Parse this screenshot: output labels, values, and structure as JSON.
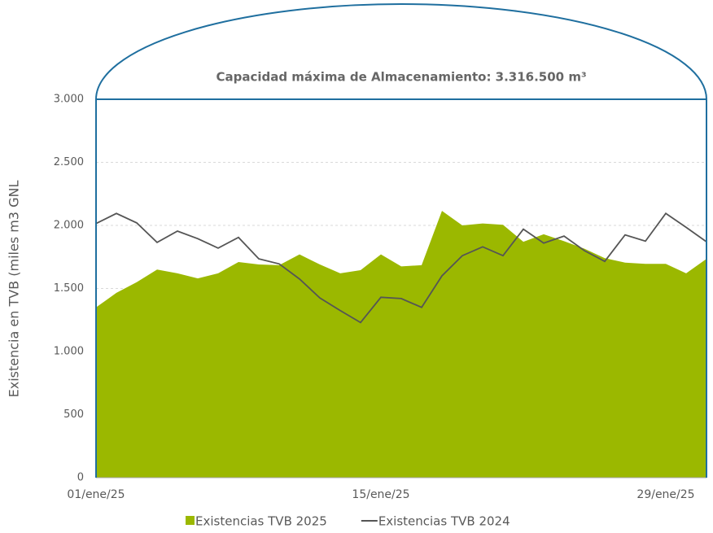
{
  "chart_data": {
    "type": "area_line",
    "annotation": "Capacidad máxima de Almacenamiento: 3.316.500 m³",
    "y_label": "Existencia en TVB (miles m3 GNL",
    "categories": [
      "01/ene/25",
      null,
      null,
      null,
      null,
      null,
      null,
      null,
      null,
      null,
      null,
      null,
      null,
      null,
      "15/ene/25",
      null,
      null,
      null,
      null,
      null,
      null,
      null,
      null,
      null,
      null,
      null,
      null,
      null,
      "29/ene/25",
      null,
      null
    ],
    "series": [
      {
        "name": "Existencias TVB 2025",
        "kind": "area",
        "color": "#9bb800",
        "values": [
          1350,
          1465,
          1550,
          1650,
          1620,
          1580,
          1620,
          1710,
          1690,
          1685,
          1770,
          1690,
          1620,
          1645,
          1770,
          1675,
          1685,
          2115,
          2000,
          2015,
          2005,
          1870,
          1930,
          1875,
          1815,
          1740,
          1705,
          1695,
          1695,
          1620,
          1735
        ]
      },
      {
        "name": "Existencias TVB 2024",
        "kind": "line",
        "color": "#555555",
        "values": [
          2015,
          2095,
          2020,
          1865,
          1955,
          1895,
          1820,
          1905,
          1735,
          1695,
          1575,
          1425,
          1325,
          1230,
          1430,
          1420,
          1350,
          1600,
          1760,
          1830,
          1760,
          1970,
          1860,
          1915,
          1800,
          1715,
          1925,
          1875,
          2095,
          1985,
          1870
        ]
      }
    ],
    "ylim": [
      0,
      3000
    ],
    "yticks": [
      0,
      500,
      {
        "value": 1000,
        "label": "1.000"
      },
      {
        "value": 1500,
        "label": "1.500"
      },
      {
        "value": 2000,
        "label": "2.000"
      },
      {
        "value": 2500,
        "label": "2.500"
      },
      {
        "value": 3000,
        "label": "3.000"
      }
    ],
    "grid": true,
    "legend": "bottom"
  }
}
